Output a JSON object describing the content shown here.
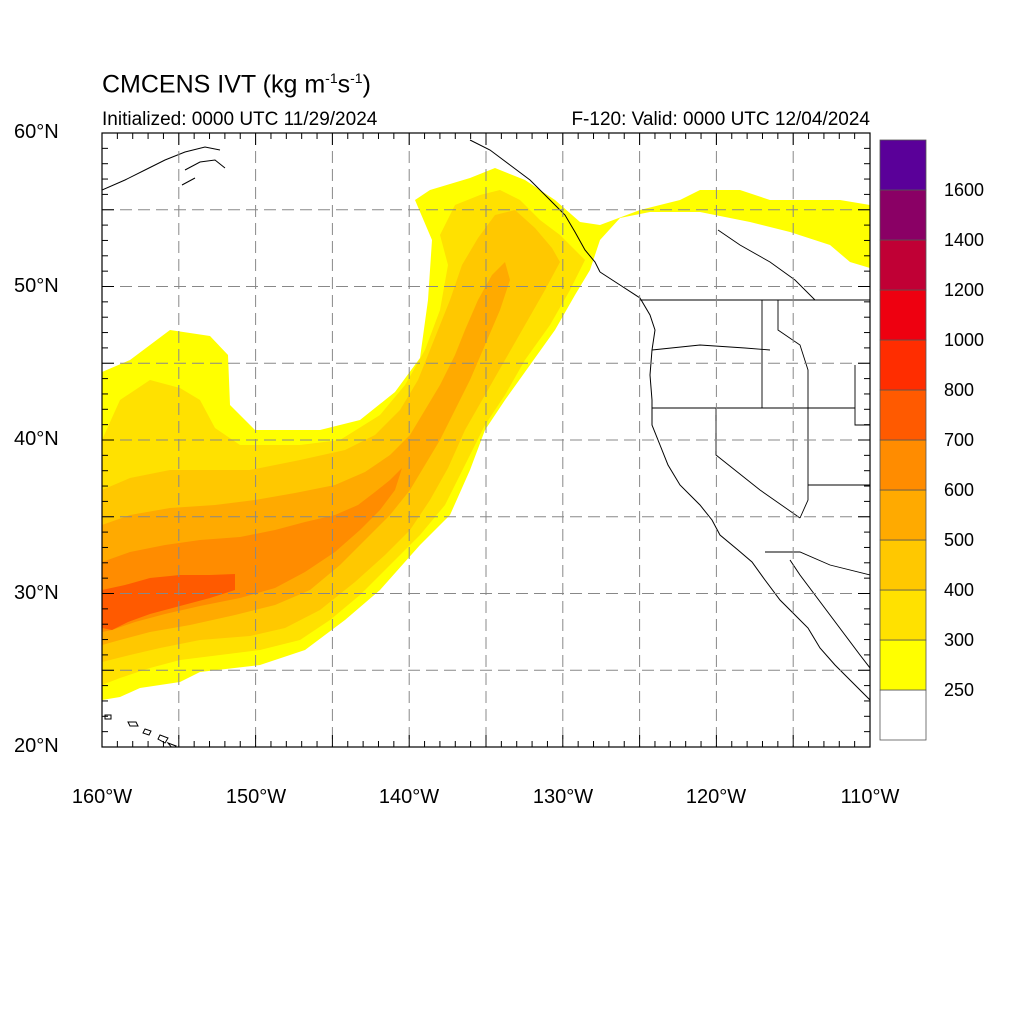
{
  "header": {
    "title_main": "CMCENS IVT (kg m",
    "title_sup1": "-1",
    "title_mid": "s",
    "title_sup2": "-1",
    "title_end": ")",
    "initialized": "Initialized: 0000 UTC 11/29/2024",
    "valid": "F-120: Valid: 0000 UTC 12/04/2024"
  },
  "axes": {
    "lon_range": [
      -160,
      -110
    ],
    "lat_range": [
      20,
      60
    ],
    "lon_ticks": [
      -160,
      -150,
      -140,
      -130,
      -120,
      -110
    ],
    "lon_labels": [
      "160°W",
      "150°W",
      "140°W",
      "130°W",
      "120°W",
      "110°W"
    ],
    "lat_ticks": [
      20,
      30,
      40,
      50,
      60
    ],
    "lat_labels": [
      "20°N",
      "30°N",
      "40°N",
      "50°N",
      "60°N"
    ],
    "grid_dashed_every_deg": 5
  },
  "colorbar": {
    "labels": [
      "250",
      "300",
      "400",
      "500",
      "600",
      "700",
      "800",
      "1000",
      "1200",
      "1400",
      "1600"
    ],
    "bins": [
      {
        "color": "#ffffff"
      },
      {
        "color": "#ffff00"
      },
      {
        "color": "#ffe100"
      },
      {
        "color": "#ffc800"
      },
      {
        "color": "#ffaa00"
      },
      {
        "color": "#ff8c00"
      },
      {
        "color": "#ff5a00"
      },
      {
        "color": "#ff2d00"
      },
      {
        "color": "#ee0010"
      },
      {
        "color": "#c00035"
      },
      {
        "color": "#8a0065"
      },
      {
        "color": "#5a0099"
      }
    ]
  },
  "ivt_field": {
    "units": "kg m-1 s-1",
    "bands": [
      {
        "level": 250,
        "color": "#ffff00"
      },
      {
        "level": 300,
        "color": "#ffe100"
      },
      {
        "level": 400,
        "color": "#ffc800"
      },
      {
        "level": 500,
        "color": "#ffaa00"
      },
      {
        "level": 600,
        "color": "#ff8c00"
      },
      {
        "level": 700,
        "color": "#ff5a00"
      }
    ]
  }
}
